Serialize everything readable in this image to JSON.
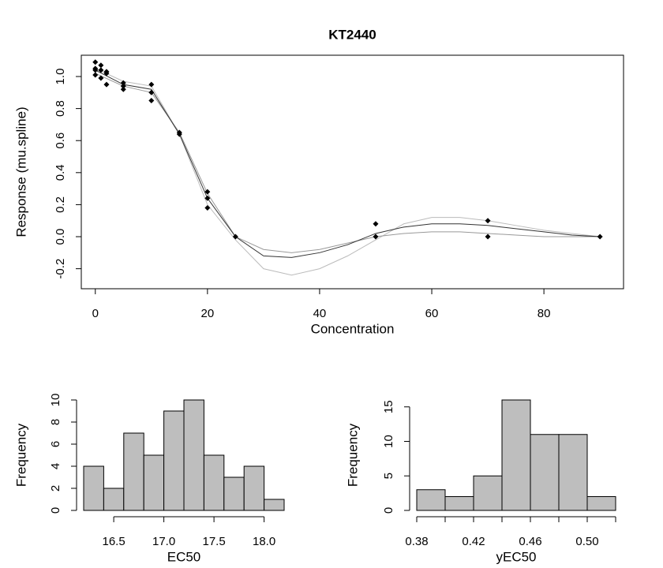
{
  "chart_data": [
    {
      "type": "line",
      "title": "KT2440",
      "x_label": "Concentration",
      "y_label": "Response (mu.spline)",
      "xlim": [
        -2.5,
        94.2
      ],
      "ylim": [
        -0.325,
        1.133
      ],
      "xticks": [
        0,
        20,
        40,
        60,
        80
      ],
      "yticks": [
        -0.2,
        {
          "value": 0,
          "label": "0.0"
        },
        0.2,
        0.4,
        0.6,
        0.8,
        {
          "value": 1,
          "label": "1.0"
        }
      ],
      "x": [
        0,
        5,
        10,
        15,
        20,
        25,
        30,
        35,
        40,
        45,
        50,
        55,
        60,
        65,
        70,
        75,
        80,
        85,
        90
      ],
      "series": [
        {
          "color": "#bbbbbb",
          "values": [
            1.05,
            0.97,
            0.94,
            0.64,
            0.2,
            -0.02,
            -0.2,
            -0.24,
            -0.2,
            -0.12,
            -0.02,
            0.08,
            0.12,
            0.12,
            0.1,
            0.07,
            0.04,
            0.02,
            0.0
          ]
        },
        {
          "color": "#999999",
          "values": [
            1.02,
            0.94,
            0.9,
            0.65,
            0.27,
            0.0,
            -0.08,
            -0.1,
            -0.08,
            -0.04,
            0.0,
            0.02,
            0.03,
            0.03,
            0.02,
            0.01,
            0.0,
            0.0,
            0.0
          ]
        },
        {
          "color": "#333333",
          "values": [
            1.04,
            0.95,
            0.92,
            0.64,
            0.24,
            0.0,
            -0.12,
            -0.13,
            -0.1,
            -0.05,
            0.02,
            0.06,
            0.08,
            0.08,
            0.07,
            0.05,
            0.03,
            0.01,
            0.0
          ]
        }
      ],
      "points": {
        "color": "#000000",
        "x": [
          0,
          0,
          0,
          0,
          1,
          1,
          1,
          2,
          2,
          2,
          5,
          5,
          5,
          10,
          10,
          10,
          15,
          15,
          20,
          20,
          20,
          25,
          50,
          50,
          70,
          70,
          90
        ],
        "values": [
          1.09,
          1.05,
          1.04,
          1.01,
          1.07,
          1.04,
          0.99,
          1.03,
          1.02,
          0.95,
          0.96,
          0.94,
          0.92,
          0.95,
          0.9,
          0.85,
          0.65,
          0.64,
          0.28,
          0.24,
          0.18,
          0.0,
          0.08,
          0.0,
          0.1,
          0.0,
          0.0
        ]
      }
    },
    {
      "type": "histogram",
      "x_label": "EC50",
      "y_label": "Frequency",
      "color": "#bebebe",
      "bins": [
        16.2,
        16.4,
        16.6,
        16.8,
        17.0,
        17.2,
        17.4,
        17.6,
        17.8,
        18.0,
        18.2
      ],
      "values": [
        4,
        2,
        7,
        5,
        9,
        10,
        5,
        3,
        4,
        1
      ],
      "xlim": [
        16.2,
        18.2
      ],
      "ylim": [
        0,
        10
      ],
      "xticks": [
        16.5,
        {
          "value": 17,
          "label": "17.0"
        },
        17.5,
        {
          "value": 18,
          "label": "18.0"
        }
      ],
      "yticks": [
        0,
        2,
        4,
        6,
        8,
        10
      ]
    },
    {
      "type": "histogram",
      "x_label": "yEC50",
      "y_label": "Frequency",
      "color": "#bebebe",
      "bins": [
        0.38,
        0.4,
        0.42,
        0.44,
        0.46,
        0.48,
        0.5,
        0.52
      ],
      "values": [
        3,
        2,
        5,
        16,
        11,
        11,
        2
      ],
      "xlim": [
        0.38,
        0.52
      ],
      "ylim": [
        0,
        16
      ],
      "xticks": [
        0.38,
        0.42,
        0.46,
        {
          "value": 0.5,
          "label": "0.50"
        }
      ],
      "xminor_ticks": [
        0.4,
        0.44,
        0.48,
        0.52
      ],
      "yticks": [
        0,
        5,
        10,
        15
      ]
    }
  ]
}
